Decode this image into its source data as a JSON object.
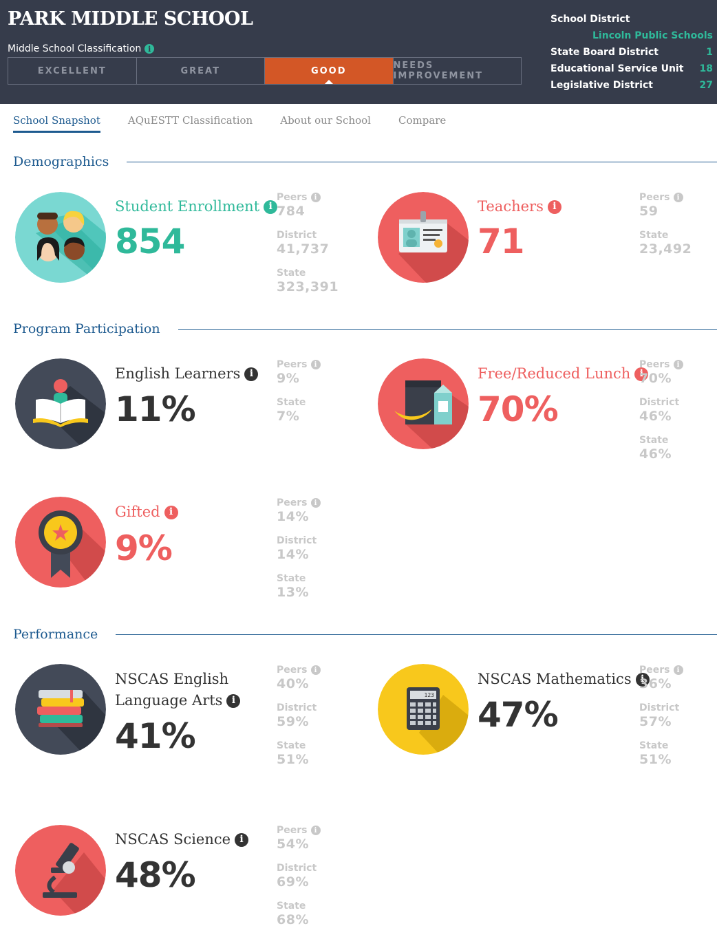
{
  "header": {
    "school_name": "PARK MIDDLE SCHOOL",
    "classification_label": "Middle School Classification",
    "classification_levels": [
      "EXCELLENT",
      "GREAT",
      "GOOD",
      "NEEDS IMPROVEMENT"
    ],
    "active_level": "GOOD",
    "district_info": {
      "school_district_label": "School District",
      "school_district_value": "Lincoln Public Schools",
      "state_board_label": "State Board District",
      "state_board_value": "1",
      "esu_label": "Educational Service Unit",
      "esu_value": "18",
      "legislative_label": "Legislative District",
      "legislative_value": "27"
    }
  },
  "tabs": [
    "School Snapshot",
    "AQuESTT Classification",
    "About our School",
    "Compare"
  ],
  "sections": {
    "demographics": "Demographics",
    "program": "Program Participation",
    "performance": "Performance"
  },
  "metrics": {
    "enrollment": {
      "title": "Student Enrollment",
      "value": "854",
      "comps": [
        {
          "label": "Peers",
          "value": "784"
        },
        {
          "label": "District",
          "value": "41,737"
        },
        {
          "label": "State",
          "value": "323,391"
        }
      ]
    },
    "teachers": {
      "title": "Teachers",
      "value": "71",
      "comps": [
        {
          "label": "Peers",
          "value": "59"
        },
        {
          "label": "State",
          "value": "23,492"
        }
      ]
    },
    "english_learners": {
      "title": "English Learners",
      "value": "11%",
      "comps": [
        {
          "label": "Peers",
          "value": "9%"
        },
        {
          "label": "State",
          "value": "7%"
        }
      ]
    },
    "lunch": {
      "title": "Free/Reduced Lunch",
      "value": "70%",
      "comps": [
        {
          "label": "Peers",
          "value": "70%"
        },
        {
          "label": "District",
          "value": "46%"
        },
        {
          "label": "State",
          "value": "46%"
        }
      ]
    },
    "gifted": {
      "title": "Gifted",
      "value": "9%",
      "comps": [
        {
          "label": "Peers",
          "value": "14%"
        },
        {
          "label": "District",
          "value": "14%"
        },
        {
          "label": "State",
          "value": "13%"
        }
      ]
    },
    "ela": {
      "title_line1": "NSCAS English",
      "title_line2": "Language Arts",
      "value": "41%",
      "comps": [
        {
          "label": "Peers",
          "value": "40%"
        },
        {
          "label": "District",
          "value": "59%"
        },
        {
          "label": "State",
          "value": "51%"
        }
      ]
    },
    "math": {
      "title": "NSCAS Mathematics",
      "value": "47%",
      "comps": [
        {
          "label": "Peers",
          "value": "36%"
        },
        {
          "label": "District",
          "value": "57%"
        },
        {
          "label": "State",
          "value": "51%"
        }
      ]
    },
    "science": {
      "title": "NSCAS Science",
      "value": "48%",
      "comps": [
        {
          "label": "Peers",
          "value": "54%"
        },
        {
          "label": "District",
          "value": "69%"
        },
        {
          "label": "State",
          "value": "68%"
        }
      ]
    }
  },
  "icons": {
    "info": "i",
    "calculator_display": "123"
  },
  "colors": {
    "header_bg": "#363c4b",
    "accent_teal": "#2fb99a",
    "accent_red": "#ee5f5f",
    "active_orange": "#d35726",
    "link_blue": "#1d5a8f",
    "math_yellow": "#f8c81c",
    "dark_circle": "#434a58"
  }
}
